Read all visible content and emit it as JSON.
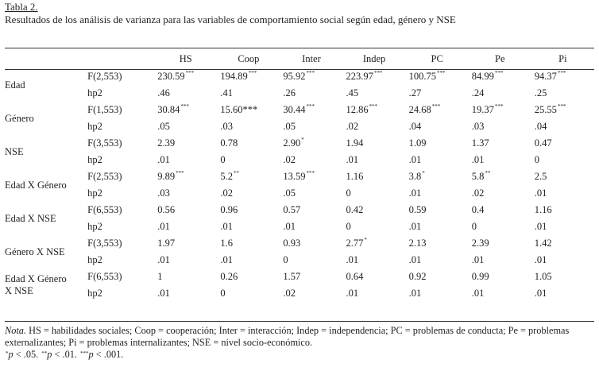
{
  "caption": {
    "label": "Tabla 2.",
    "title": "Resultados de los análisis de varianza para las variables de comportamiento social según edad, género y NSE"
  },
  "columns": [
    "HS",
    "Coop",
    "Inter",
    "Indep",
    "PC",
    "Pe",
    "Pi"
  ],
  "rows": [
    {
      "variable_lines": [
        "Edad"
      ],
      "f_label": "F(2,553)",
      "f_values": [
        [
          "230.59",
          "***"
        ],
        [
          "194.89",
          "***"
        ],
        [
          "95.92",
          "***"
        ],
        [
          "223.97",
          "***"
        ],
        [
          "100.75",
          "***"
        ],
        [
          "84.99",
          "***"
        ],
        [
          "94.37",
          "***"
        ]
      ],
      "hp2_label": "hp2",
      "hp2_values": [
        ".46",
        ".41",
        ".26",
        ".45",
        ".27",
        ".24",
        ".25"
      ]
    },
    {
      "variable_lines": [
        "Género"
      ],
      "f_label": "F(1,553)",
      "f_values": [
        [
          "30.84",
          "***"
        ],
        [
          "15.60***",
          ""
        ],
        [
          "30.44",
          "***"
        ],
        [
          "12.86",
          "***"
        ],
        [
          "24.68",
          "***"
        ],
        [
          "19.37",
          "***"
        ],
        [
          "25.55",
          "***"
        ]
      ],
      "hp2_label": "hp2",
      "hp2_values": [
        ".05",
        ".03",
        ".05",
        ".02",
        ".04",
        ".03",
        ".04"
      ]
    },
    {
      "variable_lines": [
        "NSE"
      ],
      "f_label": "F(3,553)",
      "f_values": [
        [
          "2.39",
          ""
        ],
        [
          "0.78",
          ""
        ],
        [
          "2.90",
          "*"
        ],
        [
          "1.94",
          ""
        ],
        [
          "1.09",
          ""
        ],
        [
          "1.37",
          ""
        ],
        [
          "0.47",
          ""
        ]
      ],
      "hp2_label": "hp2",
      "hp2_values": [
        ".01",
        "0",
        ".02",
        ".01",
        ".01",
        ".01",
        "0"
      ]
    },
    {
      "variable_lines": [
        "Edad X Género"
      ],
      "f_label": "F(2,553)",
      "f_values": [
        [
          "9.89",
          "***"
        ],
        [
          "5.2",
          "**"
        ],
        [
          "13.59",
          "***"
        ],
        [
          "1.16",
          ""
        ],
        [
          "3.8",
          "*"
        ],
        [
          "5.8",
          "**"
        ],
        [
          "2.5",
          ""
        ]
      ],
      "hp2_label": "hp2",
      "hp2_values": [
        ".03",
        ".02",
        ".05",
        "0",
        ".01",
        ".02",
        ".01"
      ]
    },
    {
      "variable_lines": [
        "Edad X NSE"
      ],
      "f_label": "F(6,553)",
      "f_values": [
        [
          "0.56",
          ""
        ],
        [
          "0.96",
          ""
        ],
        [
          "0.57",
          ""
        ],
        [
          "0.42",
          ""
        ],
        [
          "0.59",
          ""
        ],
        [
          "0.4",
          ""
        ],
        [
          "1.16",
          ""
        ]
      ],
      "hp2_label": "hp2",
      "hp2_values": [
        ".01",
        ".01",
        ".01",
        "0",
        ".01",
        "0",
        ".01"
      ]
    },
    {
      "variable_lines": [
        "Género X NSE"
      ],
      "f_label": "F(3,553)",
      "f_values": [
        [
          "1.97",
          ""
        ],
        [
          "1.6",
          ""
        ],
        [
          "0.93",
          ""
        ],
        [
          "2.77",
          "*"
        ],
        [
          "2.13",
          ""
        ],
        [
          "2.39",
          ""
        ],
        [
          "1.42",
          ""
        ]
      ],
      "hp2_label": "hp2",
      "hp2_values": [
        ".01",
        ".01",
        "0",
        ".01",
        ".01",
        ".01",
        ".01"
      ]
    },
    {
      "variable_lines": [
        "Edad X Género",
        "X NSE"
      ],
      "f_label": "F(6,553)",
      "f_values": [
        [
          "1",
          ""
        ],
        [
          "0.26",
          ""
        ],
        [
          "1.57",
          ""
        ],
        [
          "0.64",
          ""
        ],
        [
          "0.92",
          ""
        ],
        [
          "0.99",
          ""
        ],
        [
          "1.05",
          ""
        ]
      ],
      "hp2_label": "hp2",
      "hp2_values": [
        ".01",
        "0",
        ".02",
        ".01",
        ".01",
        ".01",
        ".01"
      ]
    }
  ],
  "note": {
    "label": "Nota.",
    "text": " HS = habilidades sociales; Coop = cooperación; Inter = interacción; Indep = independencia; PC = problemas de conducta; Pe = problemas externalizantes; Pi = problemas internalizantes; NSE = nivel socio-económico.",
    "sig": [
      {
        "mark": "*",
        "p": "p",
        "rest": " < .05. "
      },
      {
        "mark": "**",
        "p": "p",
        "rest": " < .01. "
      },
      {
        "mark": "***",
        "p": "p",
        "rest": " < .001."
      }
    ]
  }
}
